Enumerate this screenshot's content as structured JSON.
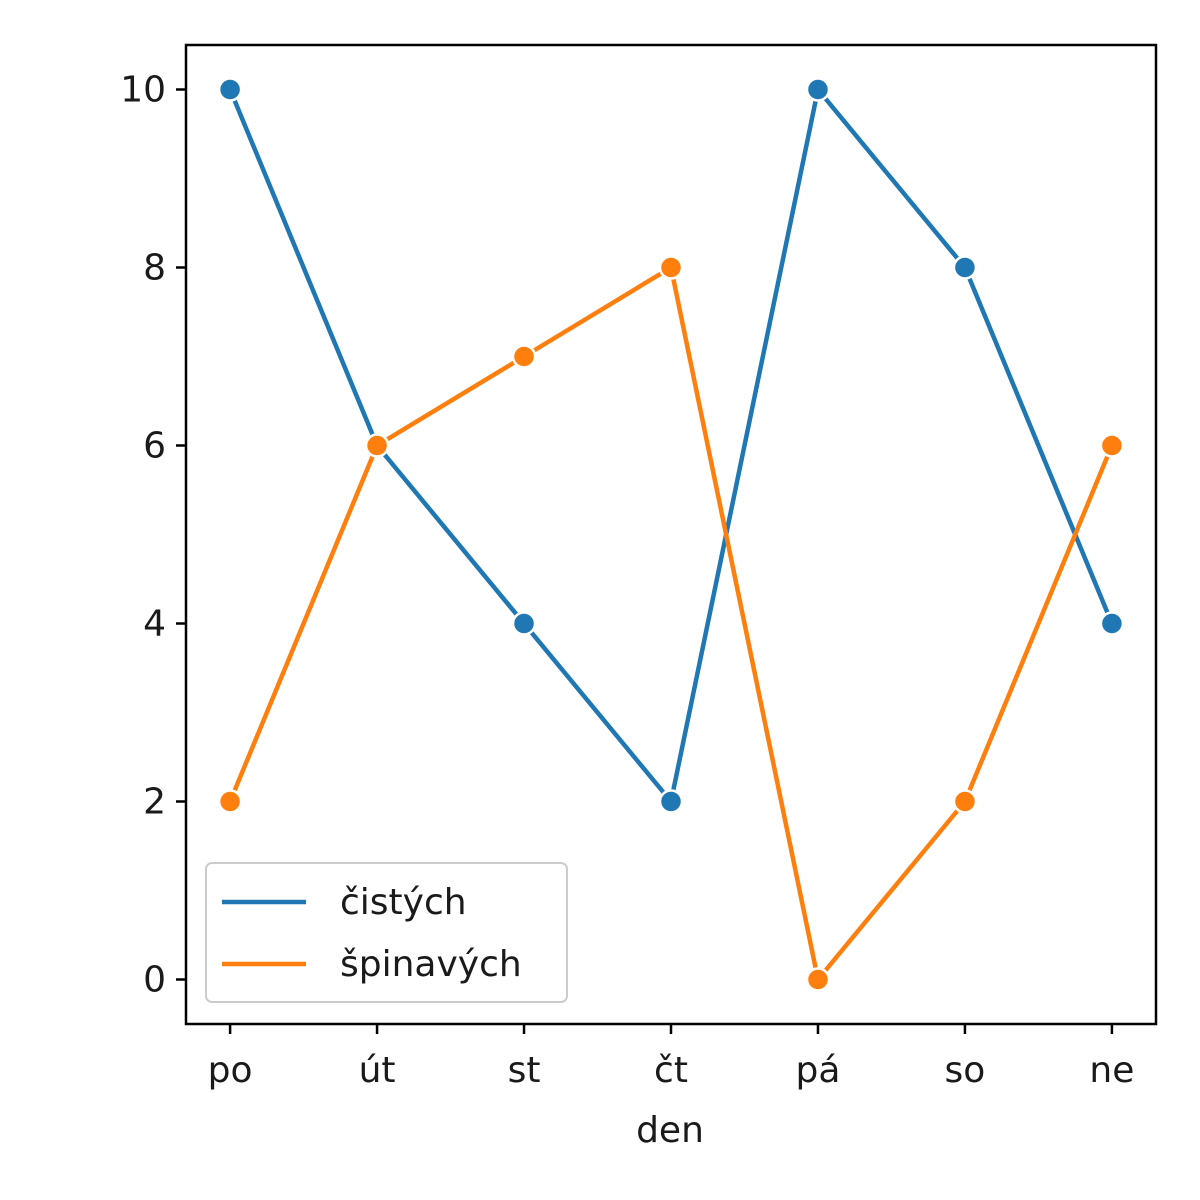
{
  "chart_data": {
    "type": "line",
    "categories": [
      "po",
      "út",
      "st",
      "čt",
      "pá",
      "so",
      "ne"
    ],
    "series": [
      {
        "name": "čistých",
        "values": [
          10,
          6,
          4,
          2,
          10,
          8,
          4
        ],
        "color": "#1f77b4"
      },
      {
        "name": "špinavých",
        "values": [
          2,
          6,
          7,
          8,
          0,
          2,
          6
        ],
        "color": "#ff7f0e"
      }
    ],
    "xlabel": "den",
    "ylabel": "",
    "ylim": [
      -0.5,
      10.5
    ],
    "yticks": [
      0,
      2,
      4,
      6,
      8,
      10
    ],
    "grid": false,
    "legend_position": "bottom-left",
    "markers": true
  }
}
